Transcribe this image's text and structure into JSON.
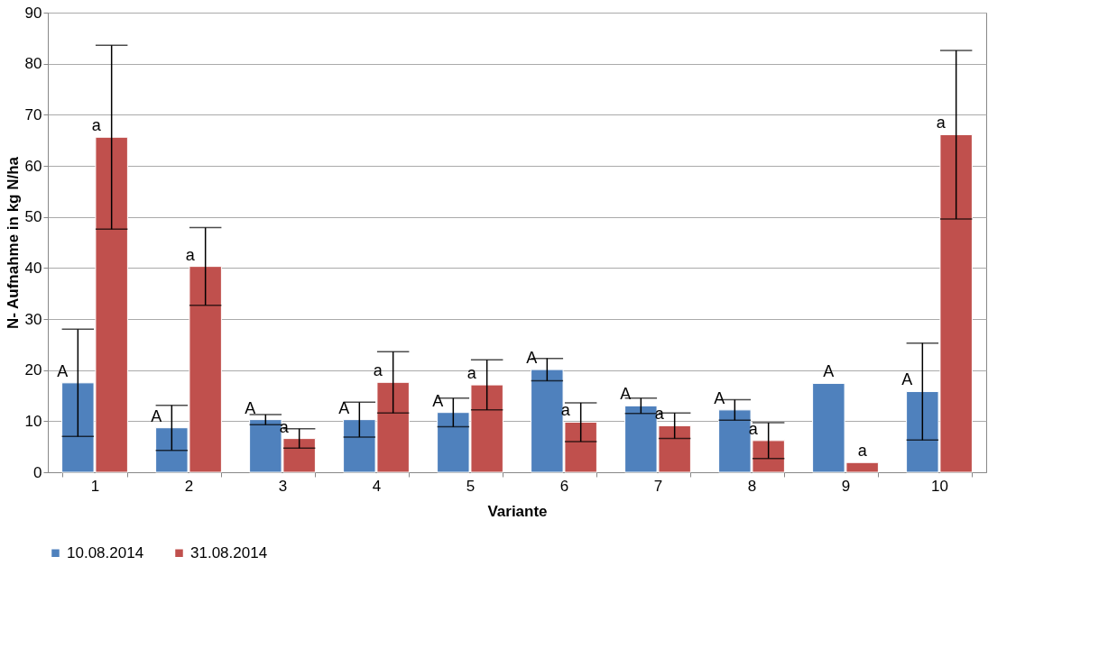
{
  "chart_data": {
    "type": "bar",
    "xlabel": "Variante",
    "ylabel": "N- Aufnahme in kg N/ha",
    "categories": [
      "1",
      "2",
      "3",
      "4",
      "5",
      "6",
      "7",
      "8",
      "9",
      "10"
    ],
    "series": [
      {
        "name": "10.08.2014",
        "color": "#4f81bd",
        "values": [
          17.5,
          8.7,
          10.3,
          10.3,
          11.7,
          20.1,
          13.0,
          12.2,
          17.4,
          15.8
        ],
        "errors": [
          10.5,
          4.4,
          1.0,
          3.4,
          2.8,
          2.2,
          1.5,
          2.0,
          null,
          9.5
        ],
        "value_labels": [
          "A",
          "A",
          "A",
          "A",
          "A",
          "A",
          "A",
          "A",
          "A",
          "A"
        ]
      },
      {
        "name": "31.08.2014",
        "color": "#c0504d",
        "values": [
          65.6,
          40.3,
          6.6,
          17.6,
          17.1,
          9.8,
          9.1,
          6.2,
          1.9,
          66.1
        ],
        "errors": [
          18.0,
          7.6,
          1.9,
          6.0,
          4.9,
          3.8,
          2.5,
          3.5,
          null,
          16.5
        ],
        "value_labels": [
          "a",
          "a",
          "a",
          "a",
          "a",
          "a",
          "a",
          "a",
          "a",
          "a"
        ]
      }
    ],
    "ylim": [
      0,
      90
    ],
    "yticks": [
      0,
      10,
      20,
      30,
      40,
      50,
      60,
      70,
      80,
      90
    ],
    "grid": "y",
    "legend": "bottom"
  }
}
